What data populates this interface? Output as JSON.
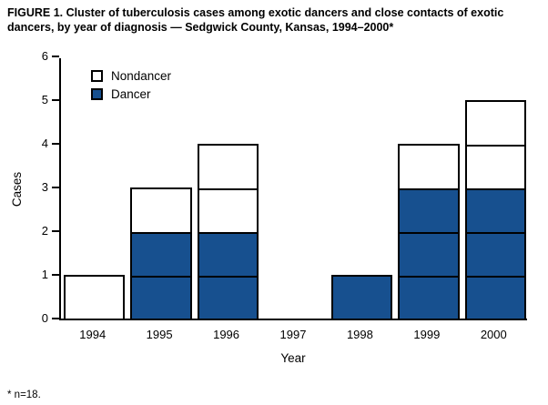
{
  "title": "FIGURE 1. Cluster of tuberculosis cases among exotic dancers and close contacts of exotic dancers, by year of diagnosis — Sedgwick County, Kansas, 1994–2000*",
  "footnote": "* n=18.",
  "chart_data": {
    "type": "bar",
    "stacked": true,
    "unit_stacked_boxes": true,
    "categories": [
      "1994",
      "1995",
      "1996",
      "1997",
      "1998",
      "1999",
      "2000"
    ],
    "series": [
      {
        "name": "Dancer",
        "color": "#17508f",
        "values": [
          0,
          2,
          2,
          0,
          1,
          3,
          3
        ]
      },
      {
        "name": "Nondancer",
        "color": "#ffffff",
        "values": [
          1,
          1,
          2,
          0,
          0,
          1,
          2
        ]
      }
    ],
    "totals": [
      1,
      3,
      4,
      0,
      1,
      4,
      5
    ],
    "xlabel": "Year",
    "ylabel": "Cases",
    "ylim": [
      0,
      6
    ],
    "yticks": [
      0,
      1,
      2,
      3,
      4,
      5,
      6
    ],
    "grid": false,
    "legend_position": "top-left",
    "legend": [
      {
        "label": "Nondancer",
        "color": "#ffffff"
      },
      {
        "label": "Dancer",
        "color": "#17508f"
      }
    ],
    "axis_color": "#000000"
  }
}
